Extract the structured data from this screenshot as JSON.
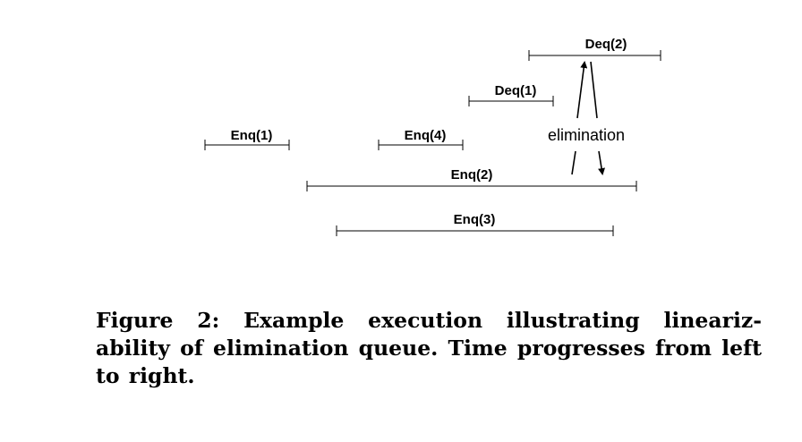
{
  "figure": {
    "operations": {
      "deq2": "Deq(2)",
      "deq1": "Deq(1)",
      "enq1": "Enq(1)",
      "enq4": "Enq(4)",
      "enq2": "Enq(2)",
      "enq3": "Enq(3)"
    },
    "annotation": "elimination"
  },
  "caption": "Figure 2: Example execution illustrating lineariz- ability of elimination queue. Time progresses from left to right."
}
